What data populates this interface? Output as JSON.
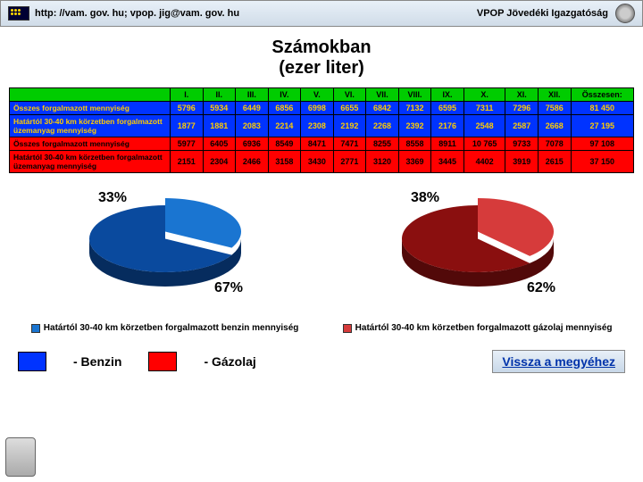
{
  "header": {
    "url_text": "http: //vam. gov. hu; vpop. jig@vam. gov. hu",
    "org_text": "VPOP Jövedéki Igazgatóság"
  },
  "title": {
    "line1": "Számokban",
    "line2": "(ezer liter)"
  },
  "table": {
    "months": [
      "I.",
      "II.",
      "III.",
      "IV.",
      "V.",
      "VI.",
      "VII.",
      "VIII.",
      "IX.",
      "X.",
      "XI.",
      "XII."
    ],
    "sum_label": "Összesen:",
    "rows": [
      {
        "label": "Összes forgalmazott mennyiség",
        "cls": "r-blue",
        "vals": [
          5796,
          5934,
          6449,
          6856,
          6998,
          6655,
          6842,
          7132,
          6595,
          7311,
          7296,
          7586
        ],
        "sum": 81450
      },
      {
        "label": "Határtól 30-40 km körzetben forgalmazott üzemanyag mennyiség",
        "cls": "r-blue",
        "vals": [
          1877,
          1881,
          2083,
          2214,
          2308,
          2192,
          2268,
          2392,
          2176,
          2548,
          2587,
          2668
        ],
        "sum": 27195
      },
      {
        "label": "Összes forgalmazott mennyiség",
        "cls": "r-red",
        "vals": [
          5977,
          6405,
          6936,
          8549,
          8471,
          7471,
          8255,
          8558,
          8911,
          10765,
          9733,
          7078
        ],
        "sum": 97108
      },
      {
        "label": "Határtól 30-40 km körzetben forgalmazott üzemanyag mennyiség",
        "cls": "r-red",
        "vals": [
          2151,
          2304,
          2466,
          3158,
          3430,
          2771,
          3120,
          3369,
          3445,
          4402,
          3919,
          2615
        ],
        "sum": 37150
      }
    ]
  },
  "pies": {
    "left": {
      "top_pct": "33%",
      "bot_pct": "67%",
      "top_color": "#1a75d1",
      "bot_color": "#0a4a9e",
      "legend": "Határtól 30-40 km körzetben forgalmazott benzin mennyiség",
      "legend_color": "#1a75d1"
    },
    "right": {
      "top_pct": "38%",
      "bot_pct": "62%",
      "top_color": "#d63b3b",
      "bot_color": "#8a0f0f",
      "legend": "Határtól 30-40 km körzetben forgalmazott gázolaj mennyiség",
      "legend_color": "#d63b3b"
    }
  },
  "legend": {
    "benzin": {
      "label": "- Benzin",
      "color": "#0033ff"
    },
    "gazolaj": {
      "label": "- Gázolaj",
      "color": "#ff0000"
    },
    "back": "Vissza a megyéhez"
  },
  "style": {
    "pie": {
      "w": 190,
      "h": 95,
      "thickness": 16,
      "label_fontsize": 16
    }
  }
}
